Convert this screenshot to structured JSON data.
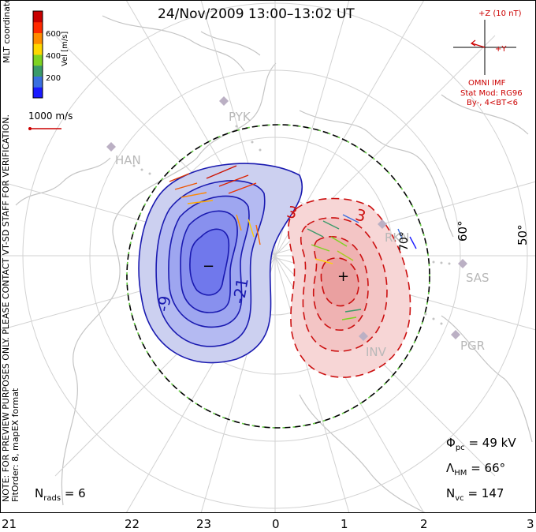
{
  "title": "24/Nov/2009 13:00–13:02 UT",
  "colorbar": {
    "title": "Vel [m/s]",
    "ticks": [
      "600",
      "400",
      "200"
    ],
    "colors": [
      "#1a1aff",
      "#3a6fe0",
      "#3a9a6a",
      "#7ed321",
      "#ffd700",
      "#ff8c00",
      "#ff2a00",
      "#c80000"
    ]
  },
  "coordinates_label": "MLT coordinates",
  "scale_vector": {
    "label": "1000 m/s",
    "color": "#cc0000"
  },
  "note_lines": [
    "NOTE: FOR PREVIEW PURPOSES ONLY. PLEASE CONTACT VT-SD STAFF FOR VERIFICATION.",
    "FitOrder: 8, mapEX format"
  ],
  "imf": {
    "plus_z": "+Z (10 nT)",
    "plus_y": "+Y",
    "source": "OMNI IMF",
    "model": "Stat Mod: RG96",
    "condition": "By-, 4<BT<6"
  },
  "stations": [
    "RKN",
    "SAS",
    "PGR",
    "INV",
    "HAN",
    "PYK"
  ],
  "latitude_labels": [
    "70°",
    "60°",
    "50°"
  ],
  "contour_labels_negative": [
    "-9",
    "-21"
  ],
  "contour_labels_positive": [
    "3",
    "3"
  ],
  "extremum_markers": {
    "min": "−",
    "max": "+"
  },
  "stats": {
    "phi_pc": {
      "symbol": "Φ",
      "sub": "pc",
      "value": "= 49 kV"
    },
    "lambda_hm": {
      "symbol": "Λ",
      "sub": "HM",
      "value": "= 66°"
    },
    "n_vc": {
      "symbol": "N",
      "sub": "vc",
      "value": "= 147"
    },
    "n_rads": {
      "symbol": "N",
      "sub": "rads",
      "value": "= 6"
    }
  },
  "mlt_hours": [
    "21",
    "22",
    "23",
    "0",
    "1",
    "2",
    "3"
  ],
  "chart_data": {
    "type": "polar-convection-map",
    "cross_polar_cap_potential_kV": 49,
    "heppner_maynard_boundary_deg": 66,
    "vector_count": 147,
    "radar_count": 6,
    "potential_cells": [
      {
        "polarity": "negative",
        "contour_labels": [
          -9,
          -21
        ]
      },
      {
        "polarity": "positive",
        "contour_labels": [
          3,
          3
        ]
      }
    ]
  }
}
